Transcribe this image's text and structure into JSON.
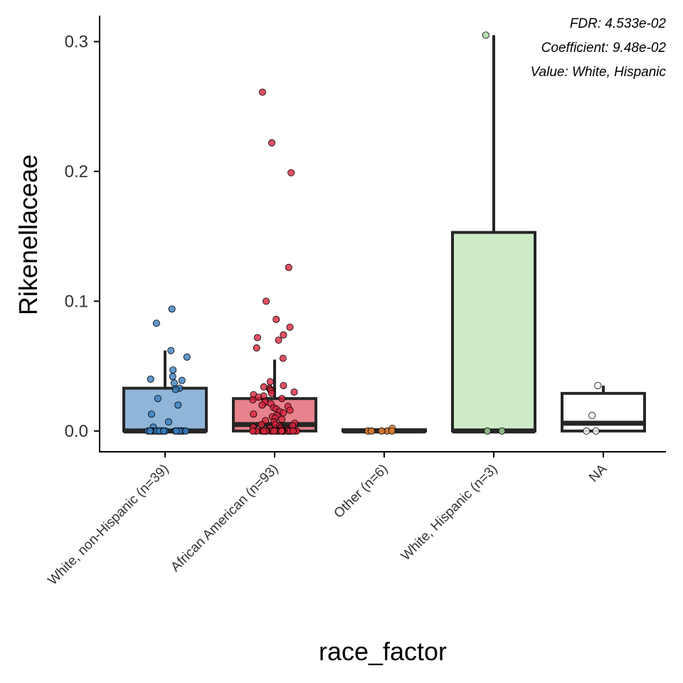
{
  "chart_data": {
    "type": "box",
    "title": "",
    "xlabel": "race_factor",
    "ylabel": "Rikenellaceae",
    "ylim": [
      -0.016,
      0.32
    ],
    "yticks": [
      0.0,
      0.1,
      0.2,
      0.3
    ],
    "ytick_labels": [
      "0.0",
      "0.1",
      "0.2",
      "0.3"
    ],
    "grid": false,
    "legend": "none",
    "annotations": [
      "FDR: 4.533e-02",
      "Coefficient: 9.48e-02",
      "Value: White, Hispanic"
    ],
    "categories": [
      "White, non-Hispanic (n=39)",
      "African American (n=93)",
      "Other (n=6)",
      "White, Hispanic (n=3)",
      "NA"
    ],
    "groups": [
      {
        "category": "White, non-Hispanic (n=39)",
        "fill": "#8fb5d8",
        "point_color": "#3a7ebf",
        "min": 0.0,
        "q1": 0.0,
        "median": 0.0,
        "q3": 0.033,
        "max": 0.062,
        "points": [
          0.094,
          0.083,
          0.062,
          0.057,
          0.047,
          0.042,
          0.04,
          0.039,
          0.037,
          0.033,
          0.032,
          0.025,
          0.02,
          0.013,
          0.007,
          0.003,
          0.0,
          0.0,
          0.0,
          0.0,
          0.0,
          0.0,
          0.0,
          0.0,
          0.0,
          0.0,
          0.0,
          0.0,
          0.0,
          0.0,
          0.0,
          0.0,
          0.0,
          0.0,
          0.0,
          0.0,
          0.0,
          0.0,
          0.0
        ]
      },
      {
        "category": "African American (n=93)",
        "fill": "#e8828c",
        "point_color": "#d7263d",
        "min": 0.0,
        "q1": 0.0,
        "median": 0.005,
        "q3": 0.025,
        "max": 0.055,
        "points": [
          0.261,
          0.222,
          0.199,
          0.126,
          0.1,
          0.086,
          0.08,
          0.074,
          0.072,
          0.07,
          0.064,
          0.056,
          0.038,
          0.035,
          0.034,
          0.033,
          0.032,
          0.031,
          0.03,
          0.029,
          0.028,
          0.027,
          0.026,
          0.025,
          0.024,
          0.023,
          0.022,
          0.021,
          0.02,
          0.019,
          0.018,
          0.017,
          0.016,
          0.015,
          0.014,
          0.013,
          0.012,
          0.011,
          0.01,
          0.009,
          0.008,
          0.007,
          0.006,
          0.005,
          0.005,
          0.004,
          0.004,
          0.003,
          0.003,
          0.002,
          0.002,
          0.001,
          0.001,
          0.0,
          0.0,
          0.0,
          0.0,
          0.0,
          0.0,
          0.0,
          0.0,
          0.0,
          0.0,
          0.0,
          0.0,
          0.0,
          0.0,
          0.0,
          0.0,
          0.0,
          0.0,
          0.0,
          0.0,
          0.0,
          0.0,
          0.0,
          0.0,
          0.0,
          0.0,
          0.0,
          0.0,
          0.0,
          0.0,
          0.0,
          0.0,
          0.0,
          0.0,
          0.0,
          0.0,
          0.0,
          0.0,
          0.0,
          0.0
        ]
      },
      {
        "category": "Other (n=6)",
        "fill": "#f5bf8c",
        "point_color": "#f08a3a",
        "min": 0.0,
        "q1": 0.0,
        "median": 0.0,
        "q3": 0.001,
        "max": 0.002,
        "points": [
          0.002,
          0.0,
          0.0,
          0.0,
          0.0,
          0.0
        ]
      },
      {
        "category": "White, Hispanic (n=3)",
        "fill": "#ceebc7",
        "point_color": "#a3d89a",
        "min": 0.0,
        "q1": 0.0,
        "median": 0.0,
        "q3": 0.153,
        "max": 0.305,
        "points": [
          0.305,
          0.0,
          0.0
        ]
      },
      {
        "category": "NA",
        "fill": "#ffffff",
        "point_color": "#ffffff",
        "min": 0.0,
        "q1": 0.0,
        "median": 0.006,
        "q3": 0.029,
        "max": 0.035,
        "points": [
          0.035,
          0.012,
          0.0,
          0.0
        ]
      }
    ]
  }
}
